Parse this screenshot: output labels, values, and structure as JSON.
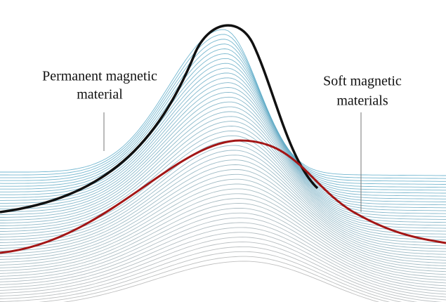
{
  "annotations": [
    {
      "lines": [
        "Permanent magnetic",
        "material"
      ]
    },
    {
      "lines": [
        "Soft magnetic",
        "materials"
      ]
    }
  ]
}
